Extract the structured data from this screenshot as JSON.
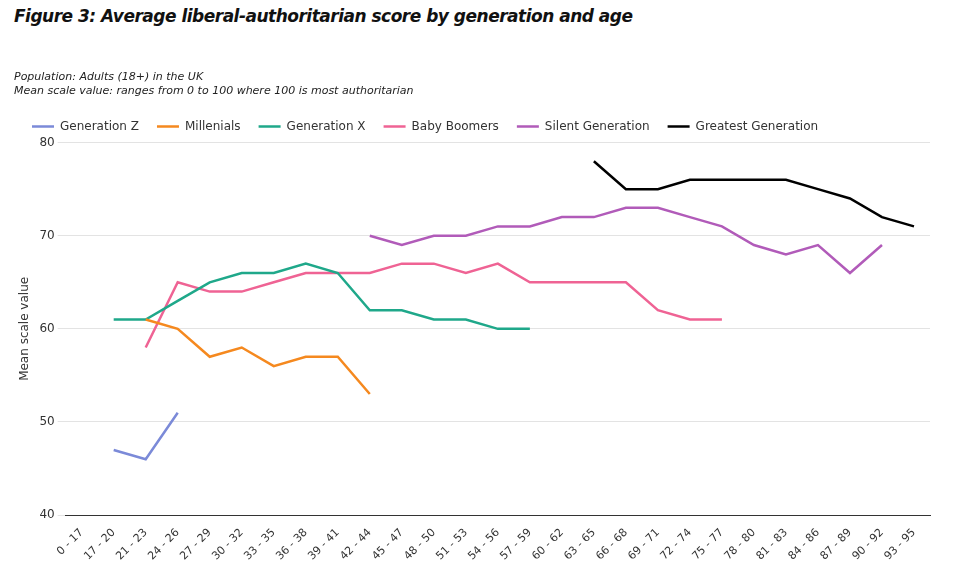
{
  "chart_data": {
    "type": "line",
    "title": "Figure 3: Average liberal-authoritarian score by generation and age",
    "subtitle": [
      "Population: Adults (18+) in the UK",
      "Mean scale value: ranges from 0 to 100 where 100 is most authoritarian"
    ],
    "y_label": "Mean scale value",
    "categories": [
      "0 - 17",
      "17 - 20",
      "21 - 23",
      "24 - 26",
      "27 - 29",
      "30 - 32",
      "33 - 35",
      "36 - 38",
      "39 - 41",
      "42 - 44",
      "45 - 47",
      "48 - 50",
      "51 - 53",
      "54 - 56",
      "57 - 59",
      "60 - 62",
      "63 - 65",
      "66 - 68",
      "69 - 71",
      "72 - 74",
      "75 - 77",
      "78 - 80",
      "81 - 83",
      "84 - 86",
      "87 - 89",
      "90 - 92",
      "93 - 95"
    ],
    "series": [
      {
        "name": "Generation Z",
        "color": "#7b8ad8",
        "values": [
          null,
          47,
          46,
          51,
          null,
          null,
          null,
          null,
          null,
          null,
          null,
          null,
          null,
          null,
          null,
          null,
          null,
          null,
          null,
          null,
          null,
          null,
          null,
          null,
          null,
          null,
          null
        ]
      },
      {
        "name": "Millenials",
        "color": "#f5891f",
        "values": [
          null,
          null,
          61,
          60,
          57,
          58,
          56,
          57,
          57,
          53,
          null,
          null,
          null,
          null,
          null,
          null,
          null,
          null,
          null,
          null,
          null,
          null,
          null,
          null,
          null,
          null,
          null
        ]
      },
      {
        "name": "Generation X",
        "color": "#1fa88a",
        "values": [
          null,
          61,
          61,
          63,
          65,
          66,
          66,
          67,
          66,
          62,
          62,
          61,
          61,
          60,
          60,
          null,
          null,
          null,
          null,
          null,
          null,
          null,
          null,
          null,
          null,
          null,
          null
        ]
      },
      {
        "name": "Baby Boomers",
        "color": "#ef6394",
        "values": [
          null,
          null,
          58,
          65,
          64,
          64,
          65,
          66,
          66,
          66,
          67,
          67,
          66,
          67,
          65,
          65,
          65,
          65,
          62,
          61,
          61,
          null,
          null,
          null,
          null,
          null,
          null
        ]
      },
      {
        "name": "Silent Generation",
        "color": "#b15bb9",
        "values": [
          null,
          null,
          null,
          null,
          null,
          null,
          null,
          null,
          null,
          70,
          69,
          70,
          70,
          71,
          71,
          72,
          72,
          73,
          73,
          72,
          71,
          69,
          68,
          69,
          66,
          69,
          null
        ]
      },
      {
        "name": "Greatest Generation",
        "color": "#000000",
        "values": [
          null,
          null,
          null,
          null,
          null,
          null,
          null,
          null,
          null,
          null,
          null,
          null,
          null,
          null,
          null,
          null,
          78,
          75,
          75,
          76,
          76,
          76,
          76,
          75,
          74,
          72,
          71
        ]
      }
    ],
    "ylim": [
      40,
      80
    ],
    "yticks": [
      40,
      50,
      60,
      70,
      80
    ],
    "grid": true,
    "legend": "top"
  }
}
